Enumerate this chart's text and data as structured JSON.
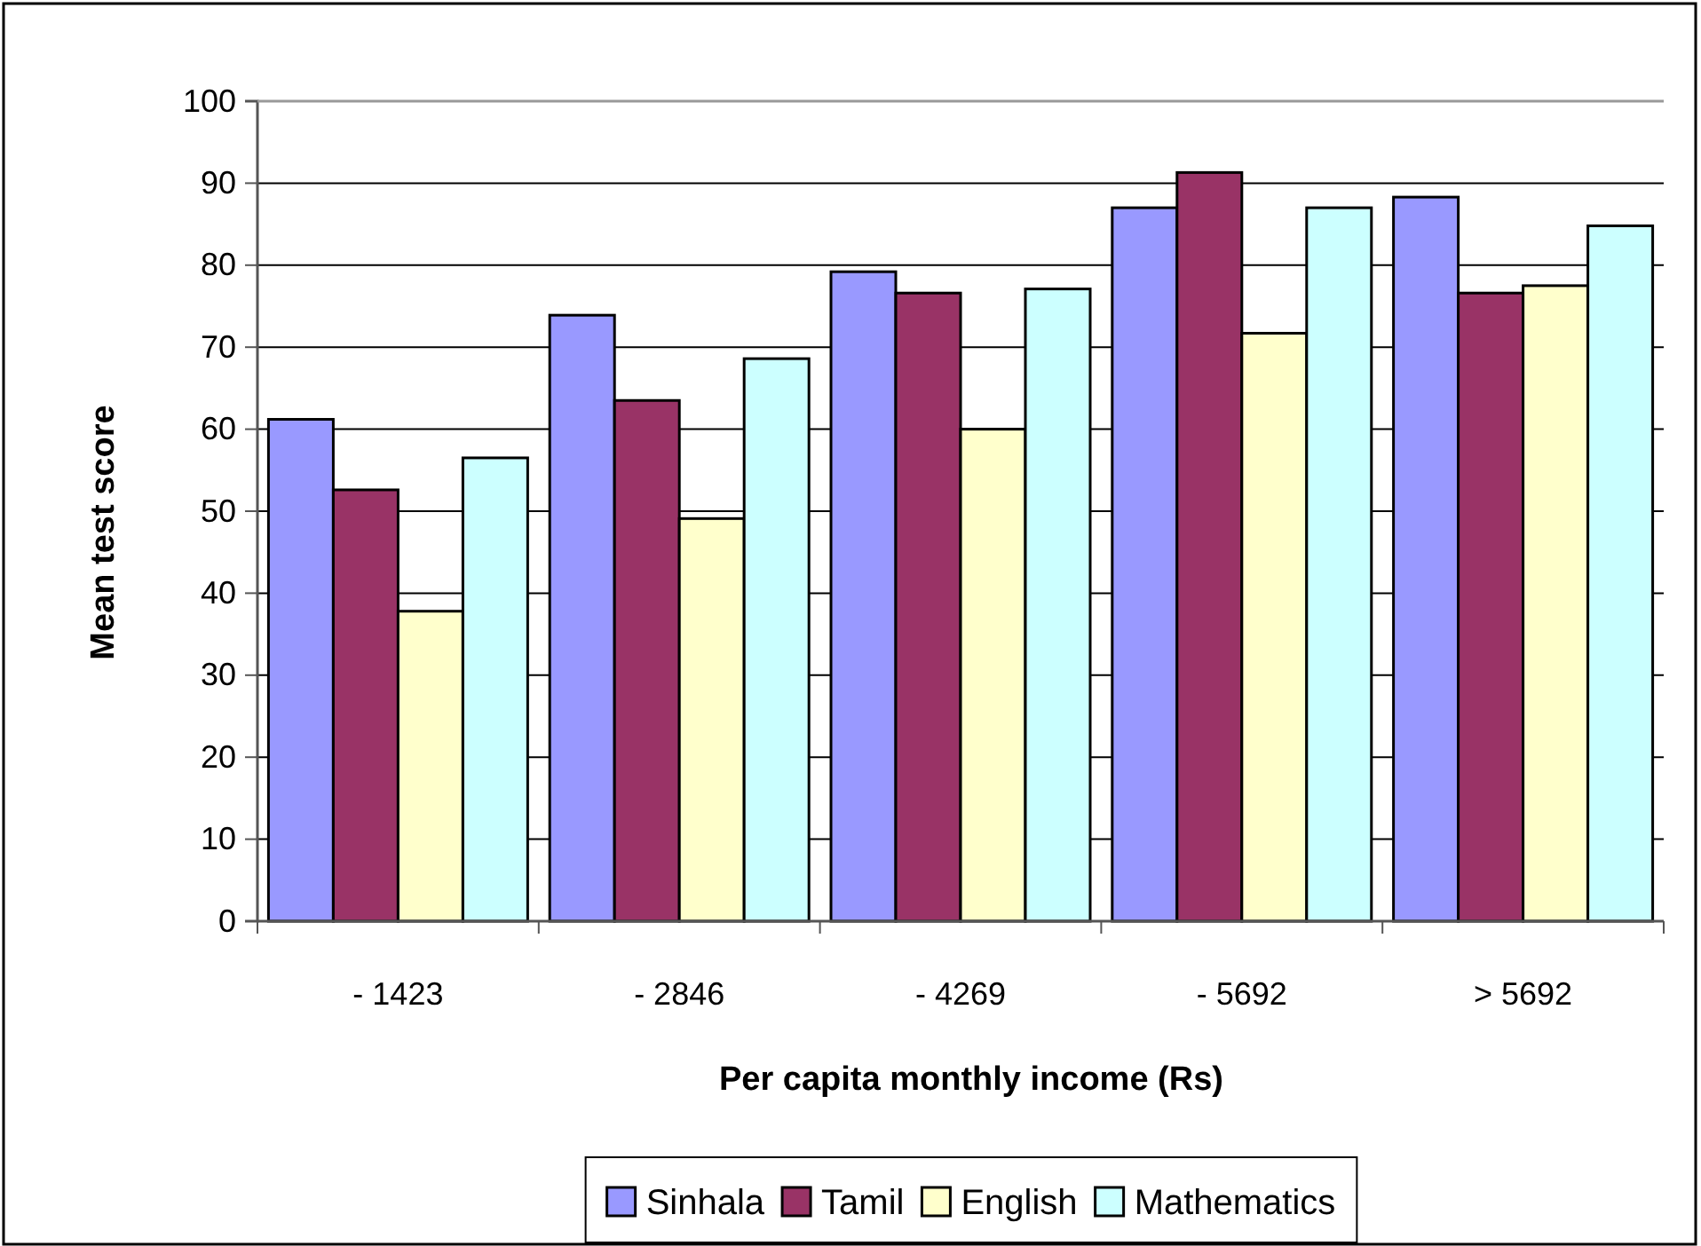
{
  "chart_data": {
    "type": "bar",
    "xlabel": "Per capita monthly income (Rs)",
    "ylabel": "Mean test score",
    "categories": [
      "- 1423",
      "- 2846",
      "- 4269",
      "- 5692",
      "> 5692"
    ],
    "series": [
      {
        "name": "Sinhala",
        "color": "#9999ff",
        "values": [
          61.2,
          73.9,
          79.2,
          87.0,
          88.3
        ]
      },
      {
        "name": "Tamil",
        "color": "#993366",
        "values": [
          52.6,
          63.5,
          76.6,
          91.3,
          76.6
        ]
      },
      {
        "name": "English",
        "color": "#ffffcc",
        "values": [
          37.8,
          49.1,
          60.0,
          71.7,
          77.5
        ]
      },
      {
        "name": "Mathematics",
        "color": "#ccffff",
        "values": [
          56.5,
          68.6,
          77.1,
          87.0,
          84.8
        ]
      }
    ],
    "ylim": [
      0,
      100
    ],
    "yticks": [
      0,
      10,
      20,
      30,
      40,
      50,
      60,
      70,
      80,
      90,
      100
    ],
    "grid": "y",
    "legend": "bottom"
  }
}
